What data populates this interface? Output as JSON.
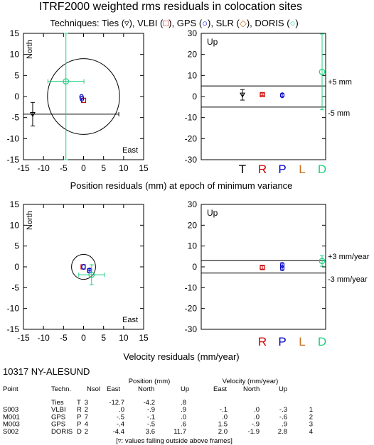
{
  "title": "ITRF2000 weighted rms residuals in colocation sites",
  "techniques_line": {
    "prefix": "Techniques: ",
    "items": [
      {
        "name": "Ties",
        "symbol": "▿"
      },
      {
        "name": "VLBI",
        "symbol": "□"
      },
      {
        "name": "GPS",
        "symbol": "○"
      },
      {
        "name": "SLR",
        "symbol": "◇"
      },
      {
        "name": "DORIS",
        "symbol": "○"
      }
    ]
  },
  "colors": {
    "ties": "#000000",
    "vlbi": "#d00000",
    "gps": "#0000cc",
    "slr": "#c87020",
    "doris": "#20d080"
  },
  "chart_data": [
    {
      "type": "scatter",
      "id": "position-horizontal",
      "xlabel": "East",
      "ylabel": "North",
      "xlim": [
        -15,
        15
      ],
      "ylim": [
        -15,
        15
      ],
      "xticks": [
        "-15",
        "-10",
        "-5",
        "0",
        "5",
        "10",
        "15"
      ],
      "yticks": [
        "15",
        "10",
        "5",
        "0",
        "-5",
        "-10",
        "-15"
      ],
      "circle_radius": 9,
      "points": [
        {
          "tech": "Ties",
          "x": -12.7,
          "y": -4.2,
          "xerr_low": 18.7,
          "xerr_high": 21.5,
          "yerr": 2.8
        },
        {
          "tech": "VLBI",
          "x": 0.0,
          "y": -0.9,
          "xerr": 0.3,
          "yerr": 0.3
        },
        {
          "tech": "GPS",
          "x": -0.5,
          "y": -0.1,
          "xerr": 0.2,
          "yerr": 0.2
        },
        {
          "tech": "GPS",
          "x": -0.4,
          "y": -0.5,
          "xerr": 0.2,
          "yerr": 0.2
        },
        {
          "tech": "DORIS",
          "x": -4.4,
          "y": 3.6,
          "xerr": 4.5,
          "yerr": 18.6
        }
      ]
    },
    {
      "type": "scatter",
      "id": "position-up",
      "xlabel": "",
      "ylabel": "",
      "panel_label": "Up",
      "ylim": [
        -30,
        30
      ],
      "yticks": [
        "30",
        "20",
        "10",
        "0",
        "-10",
        "-20",
        "-30"
      ],
      "categories": [
        "T",
        "R",
        "P",
        "L",
        "D"
      ],
      "threshold_labels": [
        "+5 mm",
        "-5 mm"
      ],
      "threshold_values": [
        5,
        -5
      ],
      "points": [
        {
          "tech": "Ties",
          "cat": "T",
          "y": 0.8,
          "yerr": 2.5
        },
        {
          "tech": "VLBI",
          "cat": "R",
          "y": 0.9,
          "yerr": 0.5
        },
        {
          "tech": "GPS",
          "cat": "P",
          "y": 0.6,
          "yerr": 0.7
        },
        {
          "tech": "DORIS",
          "cat": "D",
          "y": 11.7,
          "yerr": 18.0
        }
      ]
    },
    {
      "type": "scatter",
      "id": "velocity-horizontal",
      "xlabel": "East",
      "ylabel": "North",
      "xlim": [
        -15,
        15
      ],
      "ylim": [
        -15,
        15
      ],
      "xticks": [
        "-15",
        "-10",
        "-5",
        "0",
        "5",
        "10",
        "15"
      ],
      "yticks": [
        "15",
        "10",
        "5",
        "0",
        "-5",
        "-10",
        "-15"
      ],
      "circle_radius": 3,
      "points": [
        {
          "tech": "VLBI",
          "x": -0.1,
          "y": 0.0,
          "xerr": 0.3,
          "yerr": 0.3
        },
        {
          "tech": "GPS",
          "x": 0.0,
          "y": 0.0,
          "xerr": 0.2,
          "yerr": 0.2
        },
        {
          "tech": "GPS",
          "x": 1.5,
          "y": -0.9,
          "xerr": 0.5,
          "yerr": 0.5
        },
        {
          "tech": "DORIS",
          "x": 2.0,
          "y": -1.9,
          "xerr": 3.2,
          "yerr": 2.4
        }
      ]
    },
    {
      "type": "scatter",
      "id": "velocity-up",
      "xlabel": "",
      "ylabel": "",
      "panel_label": "Up",
      "ylim": [
        -30,
        30
      ],
      "yticks": [
        "30",
        "20",
        "10",
        "0",
        "-10",
        "-20",
        "-30"
      ],
      "categories": [
        "T",
        "R",
        "P",
        "L",
        "D"
      ],
      "threshold_labels": [
        "+3 mm/year",
        "-3 mm/year"
      ],
      "threshold_values": [
        3,
        -3
      ],
      "points": [
        {
          "tech": "VLBI",
          "cat": "R",
          "y": -0.3,
          "yerr": 0.8
        },
        {
          "tech": "GPS",
          "cat": "P",
          "y": -0.6,
          "yerr": 1.0
        },
        {
          "tech": "GPS",
          "cat": "P",
          "y": 0.9,
          "yerr": 1.0
        },
        {
          "tech": "DORIS",
          "cat": "D",
          "y": 2.8,
          "yerr": 2.5
        }
      ]
    }
  ],
  "position_caption": "Position residuals (mm) at epoch of minimum variance",
  "velocity_caption": "Velocity residuals (mm/year)",
  "up_letters": [
    "T",
    "R",
    "P",
    "L",
    "D"
  ],
  "site": {
    "name": "10317 NY-ALESUND",
    "header_groups": [
      "Position (mm)",
      "Velocity (mm/year)"
    ],
    "columns": [
      "Point",
      "Techn.",
      "Nsol",
      "East",
      "North",
      "Up",
      "East",
      "North",
      "Up"
    ],
    "rows": [
      [
        "",
        "Ties",
        "T 3",
        "-12.7",
        "-4.2",
        ".8",
        "",
        "",
        "",
        ""
      ],
      [
        "S003",
        "VLBI",
        "R 2",
        ".0",
        "-.9",
        ".9",
        "-.1",
        ".0",
        "-.3",
        "1"
      ],
      [
        "M001",
        "GPS",
        "P 7",
        "-.5",
        "-.1",
        ".0",
        ".0",
        ".0",
        "-.6",
        "2"
      ],
      [
        "M003",
        "GPS",
        "P 4",
        "-.4",
        "-.5",
        ".6",
        "1.5",
        "-.9",
        ".9",
        "3"
      ],
      [
        "S002",
        "DORIS",
        "D 2",
        "-4.4",
        "3.6",
        "11.7",
        "2.0",
        "-1.9",
        "2.8",
        "4"
      ]
    ],
    "footnote": "[▿: values falling outside above frames]"
  }
}
